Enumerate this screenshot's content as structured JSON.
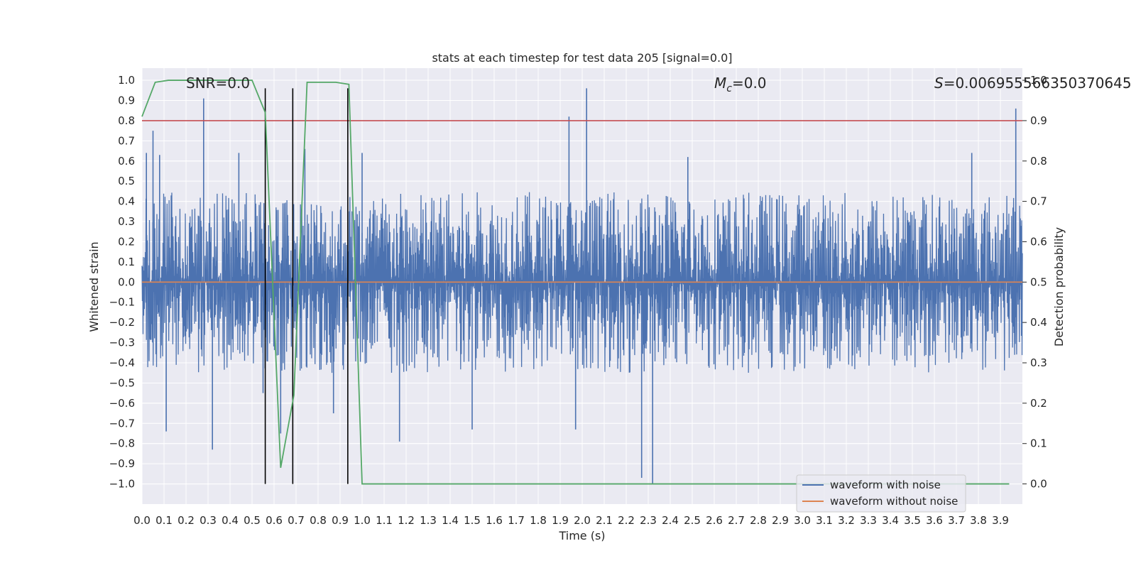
{
  "chart_data": {
    "type": "line",
    "title": "stats at each timestep for test data 205 [signal=0.0]",
    "xlabel": "Time (s)",
    "ylabel_left": "Whitened strain",
    "ylabel_right": "Detection probability",
    "xlim": [
      0.0,
      4.0
    ],
    "ylim_left": [
      -1.1,
      1.06
    ],
    "ylim_right": [
      -0.05,
      1.03
    ],
    "x_ticks": [
      "0.0",
      "0.1",
      "0.2",
      "0.3",
      "0.4",
      "0.5",
      "0.6",
      "0.7",
      "0.8",
      "0.9",
      "1.0",
      "1.1",
      "1.2",
      "1.3",
      "1.4",
      "1.5",
      "1.6",
      "1.7",
      "1.8",
      "1.9",
      "2.0",
      "2.1",
      "2.2",
      "2.3",
      "2.4",
      "2.5",
      "2.6",
      "2.7",
      "2.8",
      "2.9",
      "3.0",
      "3.1",
      "3.2",
      "3.3",
      "3.4",
      "3.5",
      "3.6",
      "3.7",
      "3.8",
      "3.9"
    ],
    "y_ticks_left": [
      "1.0",
      "0.9",
      "0.8",
      "0.7",
      "0.6",
      "0.5",
      "0.4",
      "0.3",
      "0.2",
      "0.1",
      "0.0",
      "−0.1",
      "−0.2",
      "−0.3",
      "−0.4",
      "−0.5",
      "−0.6",
      "−0.7",
      "−0.8",
      "−0.9",
      "−1.0"
    ],
    "y_ticks_right": [
      "1.0",
      "0.9",
      "0.8",
      "0.7",
      "0.6",
      "0.5",
      "0.4",
      "0.3",
      "0.2",
      "0.1",
      "0.0"
    ],
    "annotations": {
      "snr": "SNR=0.0",
      "mc_symbol": "M",
      "mc_subscript": "c",
      "mc_value": "=0.0",
      "s_symbol": "S",
      "s_value": "=0.006955566350370645"
    },
    "grid": true,
    "legend_position": "lower-right",
    "series": [
      {
        "name": "waveform with noise",
        "color": "#4c72b0",
        "axis": "left",
        "noise_band": [
          -0.45,
          0.45
        ],
        "spikes": [
          {
            "x": 0.02,
            "y": 0.64
          },
          {
            "x": 0.05,
            "y": 0.75
          },
          {
            "x": 0.08,
            "y": 0.63
          },
          {
            "x": 0.11,
            "y": -0.74
          },
          {
            "x": 0.28,
            "y": 0.91
          },
          {
            "x": 0.32,
            "y": -0.83
          },
          {
            "x": 0.44,
            "y": 0.64
          },
          {
            "x": 0.55,
            "y": -0.55
          },
          {
            "x": 0.63,
            "y": -0.75
          },
          {
            "x": 0.74,
            "y": 0.66
          },
          {
            "x": 0.87,
            "y": -0.65
          },
          {
            "x": 1.0,
            "y": 0.64
          },
          {
            "x": 1.17,
            "y": -0.79
          },
          {
            "x": 1.5,
            "y": -0.73
          },
          {
            "x": 1.94,
            "y": 0.82
          },
          {
            "x": 1.97,
            "y": -0.73
          },
          {
            "x": 2.02,
            "y": 0.96
          },
          {
            "x": 2.27,
            "y": -0.97
          },
          {
            "x": 2.32,
            "y": -1.0
          },
          {
            "x": 2.48,
            "y": 0.62
          },
          {
            "x": 3.77,
            "y": 0.64
          },
          {
            "x": 3.97,
            "y": 0.86
          }
        ]
      },
      {
        "name": "waveform without noise",
        "color": "#dd8452",
        "axis": "left",
        "x": [
          0.0,
          4.0
        ],
        "y": [
          0.0,
          0.0
        ]
      },
      {
        "color": "#55a868",
        "axis": "right",
        "x": [
          0.0,
          0.06,
          0.12,
          0.25,
          0.5,
          0.56,
          0.63,
          0.69,
          0.75,
          0.88,
          0.94,
          1.0,
          3.94
        ],
        "y": [
          0.91,
          0.995,
          1.0,
          1.0,
          1.0,
          0.92,
          0.04,
          0.22,
          0.995,
          0.995,
          0.99,
          0.0,
          0.0
        ]
      }
    ],
    "threshold_line": {
      "y": 0.9,
      "axis": "right",
      "color": "#c44e52"
    },
    "vertical_markers": {
      "x": [
        0.56,
        0.685,
        0.935
      ],
      "color": "#000000",
      "ymin": -1.0,
      "ymax": 0.96
    }
  }
}
